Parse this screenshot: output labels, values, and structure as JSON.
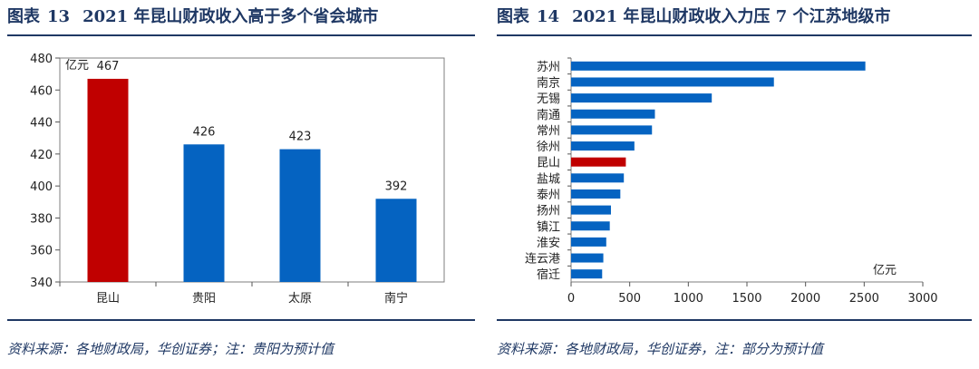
{
  "left": {
    "fig_label": "图表",
    "fig_num": "13",
    "title": "2021 年昆山财政收入高于多个省会城市",
    "source": "资料来源：各地财政局，华创证券；注：贵阳为预计值"
  },
  "right": {
    "fig_label": "图表",
    "fig_num": "14",
    "title": "2021 年昆山财政收入力压 7 个江苏地级市",
    "source": "资料来源：各地财政局，华创证券，注：部分为预计值"
  },
  "chart_data": [
    {
      "type": "bar",
      "orientation": "vertical",
      "unit_label": "亿元",
      "categories": [
        "昆山",
        "贵阳",
        "太原",
        "南宁"
      ],
      "values": [
        467,
        426,
        423,
        392
      ],
      "data_labels": [
        "467",
        "426",
        "423",
        "392"
      ],
      "ylim": [
        340,
        480
      ],
      "yticks": [
        "340",
        "360",
        "380",
        "400",
        "420",
        "440",
        "460",
        "480"
      ],
      "colors": [
        "#c00000",
        "#0563c1",
        "#0563c1",
        "#0563c1"
      ],
      "grid": false
    },
    {
      "type": "bar",
      "orientation": "horizontal",
      "unit_label": "亿元",
      "categories": [
        "苏州",
        "南京",
        "无锡",
        "南通",
        "常州",
        "徐州",
        "昆山",
        "盐城",
        "泰州",
        "扬州",
        "镇江",
        "淮安",
        "连云港",
        "宿迁"
      ],
      "values": [
        2510,
        1730,
        1200,
        715,
        690,
        540,
        467,
        450,
        420,
        340,
        330,
        300,
        275,
        265
      ],
      "xlim": [
        0,
        3000
      ],
      "xticks": [
        "0",
        "500",
        "1000",
        "1500",
        "2000",
        "2500",
        "3000"
      ],
      "colors": [
        "#0563c1",
        "#0563c1",
        "#0563c1",
        "#0563c1",
        "#0563c1",
        "#0563c1",
        "#c00000",
        "#0563c1",
        "#0563c1",
        "#0563c1",
        "#0563c1",
        "#0563c1",
        "#0563c1",
        "#0563c1"
      ],
      "grid": false
    }
  ]
}
